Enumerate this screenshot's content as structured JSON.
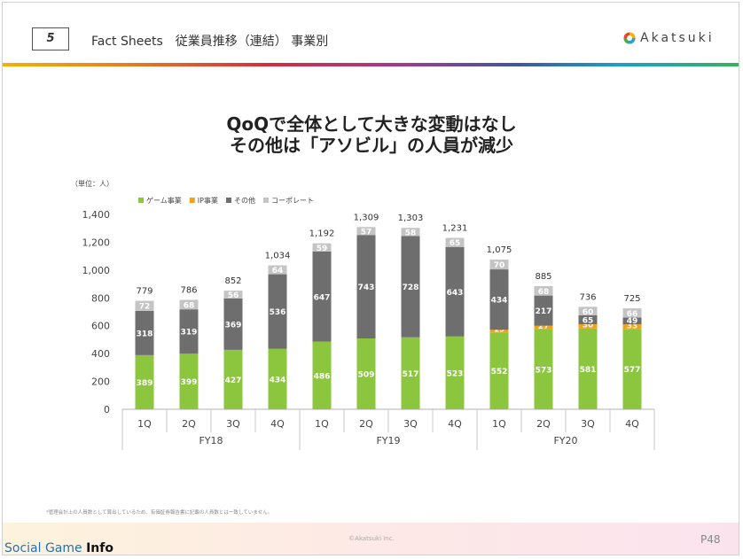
{
  "header": {
    "page_number": "5",
    "title": "Fact Sheets　従業員推移（連結） 事業別",
    "logo_text": "Akatsuki"
  },
  "headline": {
    "line1": "QoQで全体として大きな変動はなし",
    "line2": "その他は「アソビル」の人員が減少"
  },
  "footer": {
    "footnote": "*管理会計上の人員数として算出しているため、有価証券報告書に記載の人員数とは一致していません。",
    "copyright": "©Akatsuki Inc.",
    "page": "P48",
    "watermark_a": "Social Game ",
    "watermark_b": "Info"
  },
  "colors": {
    "game": "#8cc63f",
    "ip": "#f4a11a",
    "other": "#6e6e6e",
    "corporate": "#c4c4c4"
  },
  "chart_data": {
    "type": "bar",
    "stacked": true,
    "unit": "（単位：人）",
    "categories": [
      "1Q",
      "2Q",
      "3Q",
      "4Q",
      "1Q",
      "2Q",
      "3Q",
      "4Q",
      "1Q",
      "2Q",
      "3Q",
      "4Q"
    ],
    "groups": [
      {
        "label": "FY18",
        "span": 4
      },
      {
        "label": "FY19",
        "span": 4
      },
      {
        "label": "FY20",
        "span": 4
      }
    ],
    "series": [
      {
        "name": "ゲーム事業",
        "color": "#8cc63f",
        "values": [
          389,
          399,
          427,
          434,
          486,
          509,
          517,
          523,
          552,
          573,
          581,
          577
        ]
      },
      {
        "name": "IP事業",
        "color": "#f4a11a",
        "values": [
          0,
          0,
          0,
          0,
          0,
          0,
          0,
          0,
          19,
          27,
          30,
          33
        ]
      },
      {
        "name": "その他",
        "color": "#6e6e6e",
        "values": [
          318,
          319,
          369,
          536,
          647,
          743,
          728,
          643,
          434,
          217,
          65,
          49
        ]
      },
      {
        "name": "コーポレート",
        "color": "#c4c4c4",
        "values": [
          72,
          68,
          56,
          64,
          59,
          57,
          58,
          65,
          70,
          68,
          60,
          66
        ]
      }
    ],
    "totals": [
      779,
      786,
      852,
      1034,
      1192,
      1309,
      1303,
      1231,
      1075,
      885,
      736,
      725
    ],
    "ylim": [
      0,
      1400
    ],
    "yticks": [
      0,
      200,
      400,
      600,
      800,
      1000,
      1200,
      1400
    ],
    "ytick_labels": [
      "0",
      "200",
      "400",
      "600",
      "800",
      "1,000",
      "1,200",
      "1,400"
    ],
    "total_labels": [
      "779",
      "786",
      "852",
      "1,034",
      "1,192",
      "1,309",
      "1,303",
      "1,231",
      "1,075",
      "885",
      "736",
      "725"
    ],
    "legend_position": "top-left",
    "grid": false
  }
}
